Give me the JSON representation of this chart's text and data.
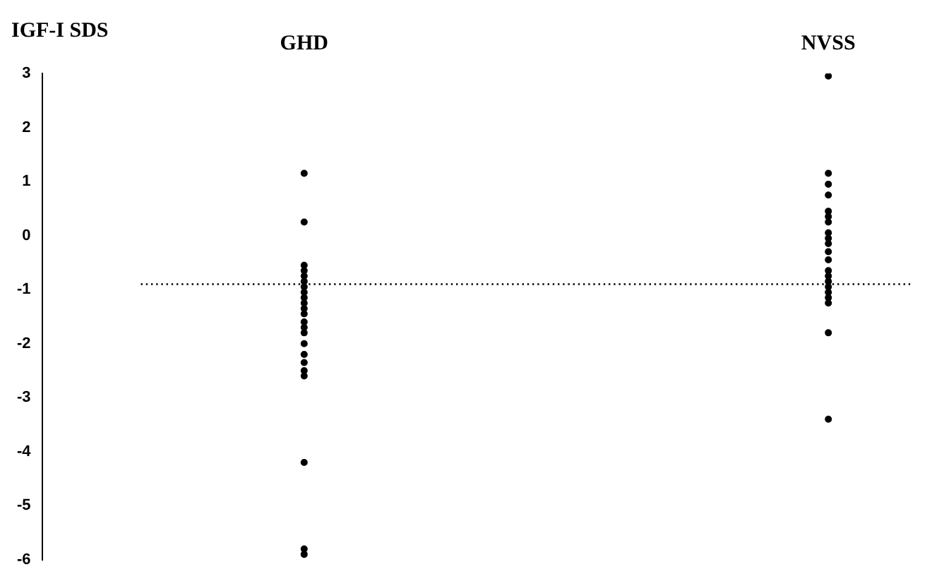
{
  "chart_data": {
    "type": "scatter",
    "ylabel": "IGF-I SDS",
    "categories": [
      "GHD",
      "NVSS"
    ],
    "ylim": [
      -6,
      3
    ],
    "yticks": [
      -6,
      -5,
      -4,
      -3,
      -2,
      -1,
      0,
      1,
      2,
      3
    ],
    "grid": false,
    "legend": false,
    "marker": "circle",
    "series": [
      {
        "color": "#000000",
        "x": [
          "GHD",
          "GHD",
          "GHD",
          "GHD",
          "GHD",
          "GHD",
          "GHD",
          "GHD",
          "GHD",
          "GHD",
          "GHD",
          "GHD",
          "GHD",
          "GHD",
          "GHD",
          "GHD",
          "GHD",
          "GHD",
          "GHD",
          "GHD",
          "GHD",
          "GHD",
          "GHD"
        ],
        "values": [
          1.15,
          0.25,
          -0.55,
          -0.65,
          -0.75,
          -0.85,
          -0.95,
          -1.05,
          -1.15,
          -1.25,
          -1.35,
          -1.45,
          -1.6,
          -1.7,
          -1.8,
          -2.0,
          -2.2,
          -2.35,
          -2.5,
          -2.6,
          -4.2,
          -5.8,
          -5.9
        ]
      },
      {
        "color": "#000000",
        "x": [
          "NVSS",
          "NVSS",
          "NVSS",
          "NVSS",
          "NVSS",
          "NVSS",
          "NVSS",
          "NVSS",
          "NVSS",
          "NVSS",
          "NVSS",
          "NVSS",
          "NVSS",
          "NVSS",
          "NVSS",
          "NVSS",
          "NVSS",
          "NVSS",
          "NVSS",
          "NVSS",
          "NVSS"
        ],
        "values": [
          2.95,
          1.15,
          0.95,
          0.75,
          0.45,
          0.35,
          0.25,
          0.05,
          -0.05,
          -0.15,
          -0.3,
          -0.45,
          -0.65,
          -0.75,
          -0.85,
          -0.95,
          -1.05,
          -1.15,
          -1.25,
          -1.8,
          -3.4
        ]
      }
    ],
    "ref_lines": [
      {
        "axis": "y",
        "value": -0.9,
        "color": "#000000",
        "line_style": "dotted"
      }
    ]
  }
}
